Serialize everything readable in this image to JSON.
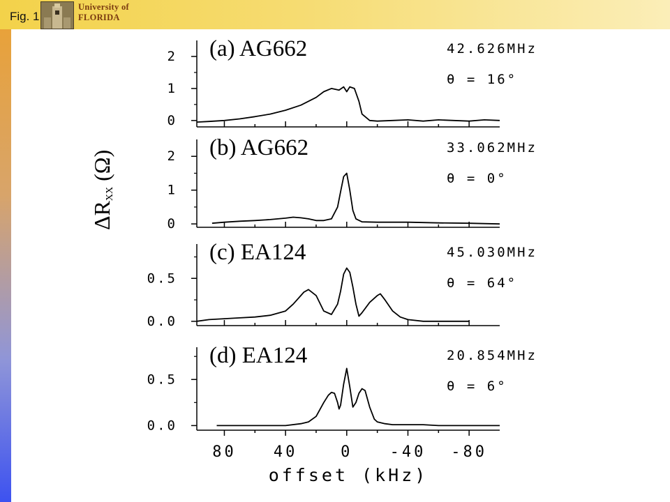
{
  "header": {
    "fig_label": "Fig. 1",
    "university_line1": "University of",
    "university_line2": "FLORIDA",
    "logo_icon": "university-tower-icon"
  },
  "chart_data": {
    "type": "line",
    "xlabel": "offset (kHz)",
    "x_reversed": true,
    "xlim": [
      98,
      -100
    ],
    "xticks": [
      80,
      40,
      0,
      -40,
      -80
    ],
    "ylabel": "ΔRxx (Ω)",
    "panels": [
      {
        "title": "(a) AG662",
        "freq": "42.626MHz",
        "angle": "θ = 16°",
        "ylim": [
          -0.2,
          2.5
        ],
        "yticks": [
          "0",
          "1",
          "2"
        ],
        "ytick_values": [
          0,
          1,
          2
        ],
        "series": {
          "x": [
            98,
            90,
            80,
            70,
            60,
            50,
            40,
            30,
            20,
            15,
            10,
            5,
            2,
            0,
            -2,
            -5,
            -8,
            -10,
            -15,
            -20,
            -30,
            -40,
            -50,
            -60,
            -70,
            -80,
            -90,
            -100
          ],
          "y": [
            -0.05,
            -0.03,
            0.0,
            0.05,
            0.12,
            0.2,
            0.32,
            0.48,
            0.72,
            0.9,
            1.0,
            0.95,
            1.05,
            0.9,
            1.05,
            1.0,
            0.6,
            0.2,
            0.0,
            -0.02,
            0.0,
            0.02,
            -0.02,
            0.02,
            0.0,
            -0.02,
            0.02,
            0.0
          ]
        }
      },
      {
        "title": "(b) AG662",
        "freq": "33.062MHz",
        "angle": "θ = 0°",
        "ylim": [
          -0.1,
          2.5
        ],
        "yticks": [
          "0",
          "1",
          "2"
        ],
        "ytick_values": [
          0,
          1,
          2
        ],
        "series": {
          "x": [
            88,
            80,
            70,
            60,
            50,
            40,
            35,
            30,
            25,
            20,
            15,
            10,
            6,
            4,
            2,
            0,
            -2,
            -4,
            -6,
            -10,
            -20,
            -30,
            -40,
            -60,
            -80,
            -100
          ],
          "y": [
            0.02,
            0.05,
            0.08,
            0.1,
            0.13,
            0.17,
            0.2,
            0.18,
            0.15,
            0.1,
            0.1,
            0.15,
            0.5,
            0.95,
            1.4,
            1.5,
            1.0,
            0.4,
            0.15,
            0.06,
            0.05,
            0.05,
            0.05,
            0.03,
            0.02,
            0.0
          ]
        }
      },
      {
        "title": "(c) EA124",
        "freq": "45.030MHz",
        "angle": "θ = 64°",
        "ylim": [
          -0.05,
          0.9
        ],
        "yticks": [
          "0.0",
          "0.5"
        ],
        "ytick_values": [
          0.0,
          0.5
        ],
        "series": {
          "x": [
            98,
            90,
            80,
            70,
            60,
            50,
            40,
            35,
            30,
            28,
            25,
            20,
            15,
            10,
            6,
            4,
            2,
            0,
            -2,
            -4,
            -6,
            -8,
            -10,
            -15,
            -20,
            -22,
            -25,
            -30,
            -35,
            -40,
            -50,
            -60,
            -70,
            -80
          ],
          "y": [
            0.0,
            0.02,
            0.03,
            0.04,
            0.05,
            0.07,
            0.12,
            0.2,
            0.3,
            0.34,
            0.37,
            0.3,
            0.12,
            0.08,
            0.2,
            0.35,
            0.55,
            0.62,
            0.57,
            0.4,
            0.2,
            0.06,
            0.1,
            0.22,
            0.3,
            0.32,
            0.25,
            0.12,
            0.05,
            0.02,
            0.0,
            0.0,
            0.0,
            0.0
          ]
        }
      },
      {
        "title": "(d) EA124",
        "freq": "20.854MHz",
        "angle": "θ = 6°",
        "ylim": [
          -0.05,
          0.85
        ],
        "yticks": [
          "0.0",
          "0.5"
        ],
        "ytick_values": [
          0.0,
          0.5
        ],
        "series": {
          "x": [
            85,
            70,
            60,
            50,
            40,
            30,
            25,
            20,
            15,
            12,
            10,
            8,
            6,
            5,
            4,
            2,
            0,
            -2,
            -4,
            -6,
            -8,
            -10,
            -12,
            -15,
            -18,
            -20,
            -25,
            -30,
            -40,
            -50,
            -60,
            -70,
            -80,
            -100
          ],
          "y": [
            0.0,
            0.0,
            0.0,
            0.0,
            0.0,
            0.02,
            0.04,
            0.1,
            0.25,
            0.33,
            0.36,
            0.35,
            0.25,
            0.18,
            0.22,
            0.45,
            0.62,
            0.42,
            0.2,
            0.25,
            0.35,
            0.4,
            0.38,
            0.2,
            0.07,
            0.04,
            0.02,
            0.01,
            0.01,
            0.01,
            0.0,
            0.0,
            0.0,
            0.0
          ]
        }
      }
    ]
  }
}
